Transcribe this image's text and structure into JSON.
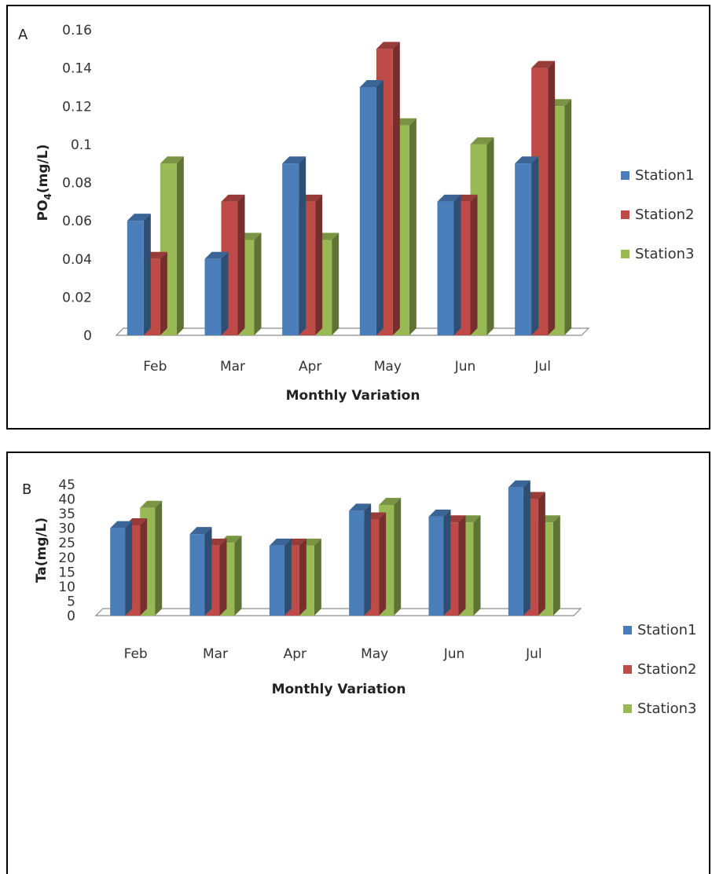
{
  "chart_data": [
    {
      "type": "bar",
      "panel_label": "A",
      "categories": [
        "Feb",
        "Mar",
        "Apr",
        "May",
        "Jun",
        "Jul"
      ],
      "series": [
        {
          "name": "Station1",
          "color": "#4A7EBB",
          "values": [
            0.06,
            0.04,
            0.09,
            0.13,
            0.07,
            0.09
          ]
        },
        {
          "name": "Station2",
          "color": "#BE4B48",
          "values": [
            0.04,
            0.07,
            0.07,
            0.15,
            0.07,
            0.14
          ]
        },
        {
          "name": "Station3",
          "color": "#98B954",
          "values": [
            0.09,
            0.05,
            0.05,
            0.11,
            0.1,
            0.12
          ]
        }
      ],
      "xlabel": "Monthly Variation",
      "ylabel": {
        "main": "PO",
        "sub": "4",
        "tail": "(mg/L)"
      },
      "ylim": [
        0,
        0.16
      ],
      "yticks": [
        "0",
        "0.02",
        "0.04",
        "0.06",
        "0.08",
        "0.1",
        "0.12",
        "0.14",
        "0.16"
      ],
      "grid": false,
      "legend_position": "right"
    },
    {
      "type": "bar",
      "panel_label": "B",
      "categories": [
        "Feb",
        "Mar",
        "Apr",
        "May",
        "Jun",
        "Jul"
      ],
      "series": [
        {
          "name": "Station1",
          "color": "#4A7EBB",
          "values": [
            30,
            28,
            24,
            36,
            34,
            44
          ]
        },
        {
          "name": "Station2",
          "color": "#BE4B48",
          "values": [
            31,
            24,
            24,
            33,
            32,
            40
          ]
        },
        {
          "name": "Station3",
          "color": "#98B954",
          "values": [
            37,
            25,
            24,
            38,
            32,
            32
          ]
        }
      ],
      "xlabel": "Monthly Variation",
      "ylabel": {
        "main": "Ta",
        "sub": "",
        "tail": "(mg/L)"
      },
      "ylim": [
        0,
        45
      ],
      "yticks": [
        "0",
        "5",
        "10",
        "15",
        "20",
        "25",
        "30",
        "35",
        "40",
        "45"
      ],
      "grid": false,
      "legend_position": "right"
    }
  ]
}
